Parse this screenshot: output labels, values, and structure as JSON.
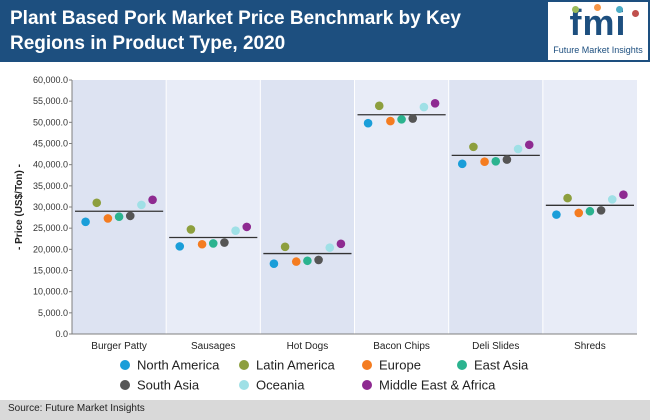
{
  "header": {
    "title": "Plant Based Pork Market Price Benchmark by Key Regions in Product Type, 2020"
  },
  "logo": {
    "mark": "fmi",
    "caption": "Future Market Insights",
    "dot_colors": [
      "#9bbb59",
      "#f79646",
      "#4bacc6",
      "#c0504d"
    ]
  },
  "footer": {
    "source": "Source: Future Market Insights"
  },
  "colors": {
    "header_bg": "#1d4f7f",
    "band_odd": "#dde3f2",
    "band_even": "#e8ecf7",
    "benchmark_line": "#333333"
  },
  "chart_data": {
    "type": "scatter",
    "title": "Plant Based Pork Market Price Benchmark by Key Regions in Product Type, 2020",
    "ylabel": "- Price (US$/Ton) -",
    "ylim": [
      0,
      60000
    ],
    "y_ticks": [
      "0.0",
      "5,000.0",
      "10,000.0",
      "15,000.0",
      "20,000.0",
      "25,000.0",
      "30,000.0",
      "35,000.0",
      "40,000.0",
      "45,000.0",
      "50,000.0",
      "55,000.0",
      "60,000.0"
    ],
    "y_tick_values": [
      0,
      5000,
      10000,
      15000,
      20000,
      25000,
      30000,
      35000,
      40000,
      45000,
      50000,
      55000,
      60000
    ],
    "categories": [
      "Burger Patty",
      "Sausages",
      "Hot Dogs",
      "Bacon Chips",
      "Deli Slides",
      "Shreds"
    ],
    "benchmark": [
      29000,
      22800,
      19000,
      51800,
      42200,
      30400
    ],
    "legend_position": "bottom",
    "series": [
      {
        "name": "North America",
        "color": "#1a9ed9",
        "values": [
          26500,
          20700,
          16600,
          49800,
          40200,
          28200
        ]
      },
      {
        "name": "Latin America",
        "color": "#8d9f3e",
        "values": [
          31000,
          24700,
          20600,
          53900,
          44200,
          32100
        ]
      },
      {
        "name": "Europe",
        "color": "#f47c20",
        "values": [
          27300,
          21200,
          17100,
          50300,
          40700,
          28600
        ]
      },
      {
        "name": "East Asia",
        "color": "#2bb38f",
        "values": [
          27700,
          21400,
          17300,
          50700,
          40800,
          29000
        ]
      },
      {
        "name": "South Asia",
        "color": "#555555",
        "values": [
          27900,
          21600,
          17500,
          50900,
          41200,
          29200
        ]
      },
      {
        "name": "Oceania",
        "color": "#9fe0e6",
        "values": [
          30500,
          24400,
          20400,
          53600,
          43700,
          31800
        ]
      },
      {
        "name": "Middle East & Africa",
        "color": "#8e2a91",
        "values": [
          31700,
          25300,
          21300,
          54500,
          44700,
          32900
        ]
      }
    ]
  }
}
